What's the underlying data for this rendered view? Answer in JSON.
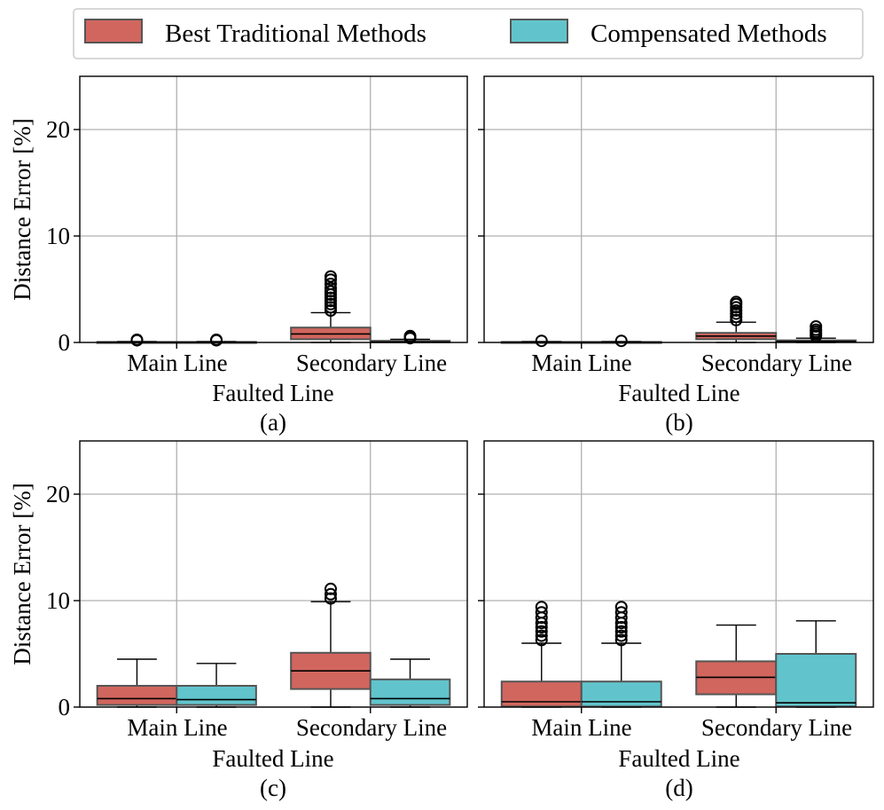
{
  "legend": {
    "items": [
      {
        "label": "Best Traditional Methods",
        "color": "#d1665e"
      },
      {
        "label": "Compensated Methods",
        "color": "#61c4cc"
      }
    ]
  },
  "colors": {
    "edge": "#555555",
    "median": "#000000",
    "grid": "#b0b0b0"
  },
  "chart_data": [
    {
      "type": "box",
      "caption": "(a)",
      "xlabel": "Faulted Line",
      "ylabel": "Distance Error [%]",
      "ylim": [
        0,
        25
      ],
      "yticks": [
        0,
        10,
        20
      ],
      "categories": [
        "Main Line",
        "Secondary Line"
      ],
      "series": [
        {
          "name": "Best Traditional Methods",
          "boxes": [
            {
              "whislo": 0,
              "q1": 0,
              "med": 0.02,
              "q3": 0.05,
              "whishi": 0.1,
              "fliers": [
                0.2,
                0.25
              ]
            },
            {
              "whislo": 0,
              "q1": 0.3,
              "med": 0.8,
              "q3": 1.4,
              "whishi": 2.8,
              "fliers": [
                3.0,
                3.3,
                3.6,
                3.9,
                4.2,
                4.5,
                4.8,
                5.1,
                5.5,
                5.9,
                6.2
              ]
            }
          ]
        },
        {
          "name": "Compensated Methods",
          "boxes": [
            {
              "whislo": 0,
              "q1": 0,
              "med": 0.02,
              "q3": 0.05,
              "whishi": 0.1,
              "fliers": [
                0.2,
                0.25
              ]
            },
            {
              "whislo": 0,
              "q1": 0.02,
              "med": 0.05,
              "q3": 0.15,
              "whishi": 0.3,
              "fliers": [
                0.4,
                0.5,
                0.6
              ]
            }
          ]
        }
      ]
    },
    {
      "type": "box",
      "caption": "(b)",
      "xlabel": "Faulted Line",
      "ylabel": "",
      "ylim": [
        0,
        25
      ],
      "yticks": [
        0,
        10,
        20
      ],
      "categories": [
        "Main Line",
        "Secondary Line"
      ],
      "series": [
        {
          "name": "Best Traditional Methods",
          "boxes": [
            {
              "whislo": 0,
              "q1": 0,
              "med": 0.02,
              "q3": 0.05,
              "whishi": 0.1,
              "fliers": [
                0.15
              ]
            },
            {
              "whislo": 0,
              "q1": 0.3,
              "med": 0.6,
              "q3": 0.9,
              "whishi": 1.9,
              "fliers": [
                2.1,
                2.4,
                2.7,
                3.0,
                3.3,
                3.6,
                3.8
              ]
            }
          ]
        },
        {
          "name": "Compensated Methods",
          "boxes": [
            {
              "whislo": 0,
              "q1": 0,
              "med": 0.02,
              "q3": 0.05,
              "whishi": 0.1,
              "fliers": [
                0.15
              ]
            },
            {
              "whislo": 0,
              "q1": 0.05,
              "med": 0.1,
              "q3": 0.2,
              "whishi": 0.4,
              "fliers": [
                0.6,
                0.8,
                1.0,
                1.2,
                1.5
              ]
            }
          ]
        }
      ]
    },
    {
      "type": "box",
      "caption": "(c)",
      "xlabel": "Faulted Line",
      "ylabel": "Distance Error [%]",
      "ylim": [
        0,
        25
      ],
      "yticks": [
        0,
        10,
        20
      ],
      "categories": [
        "Main Line",
        "Secondary Line"
      ],
      "series": [
        {
          "name": "Best Traditional Methods",
          "boxes": [
            {
              "whislo": 0,
              "q1": 0.2,
              "med": 0.8,
              "q3": 2.0,
              "whishi": 4.5,
              "fliers": []
            },
            {
              "whislo": 0,
              "q1": 1.7,
              "med": 3.4,
              "q3": 5.1,
              "whishi": 9.9,
              "fliers": [
                10.2,
                10.6,
                11.1
              ]
            }
          ]
        },
        {
          "name": "Compensated Methods",
          "boxes": [
            {
              "whislo": 0,
              "q1": 0.2,
              "med": 0.7,
              "q3": 2.0,
              "whishi": 4.1,
              "fliers": []
            },
            {
              "whislo": 0,
              "q1": 0.2,
              "med": 0.8,
              "q3": 2.6,
              "whishi": 4.5,
              "fliers": []
            }
          ]
        }
      ]
    },
    {
      "type": "box",
      "caption": "(d)",
      "xlabel": "Faulted Line",
      "ylabel": "",
      "ylim": [
        0,
        25
      ],
      "yticks": [
        0,
        10,
        20
      ],
      "categories": [
        "Main Line",
        "Secondary Line"
      ],
      "series": [
        {
          "name": "Best Traditional Methods",
          "boxes": [
            {
              "whislo": 0,
              "q1": 0.05,
              "med": 0.5,
              "q3": 2.4,
              "whishi": 6.0,
              "fliers": [
                6.3,
                6.7,
                7.1,
                7.5,
                7.9,
                8.4,
                8.9,
                9.4
              ]
            },
            {
              "whislo": 0,
              "q1": 1.2,
              "med": 2.8,
              "q3": 4.3,
              "whishi": 7.7,
              "fliers": []
            }
          ]
        },
        {
          "name": "Compensated Methods",
          "boxes": [
            {
              "whislo": 0,
              "q1": 0.05,
              "med": 0.5,
              "q3": 2.4,
              "whishi": 6.0,
              "fliers": [
                6.3,
                6.7,
                7.1,
                7.5,
                7.9,
                8.4,
                8.9,
                9.4
              ]
            },
            {
              "whislo": 0,
              "q1": 0.05,
              "med": 0.4,
              "q3": 5.0,
              "whishi": 8.1,
              "fliers": []
            }
          ]
        }
      ]
    }
  ]
}
